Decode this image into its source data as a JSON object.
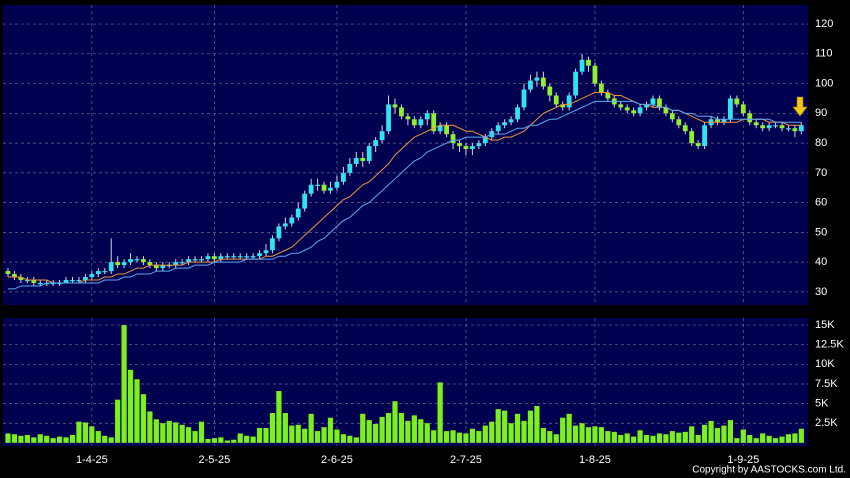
{
  "chart_data": [
    {
      "type": "candlestick",
      "open": [
        37,
        36,
        35,
        34,
        34,
        33,
        33,
        33,
        33,
        33,
        34,
        34,
        34,
        35,
        36,
        37,
        37,
        40,
        39,
        40,
        41,
        41,
        40,
        39,
        38,
        39,
        39,
        40,
        40,
        41,
        41,
        41,
        42,
        41,
        42,
        42,
        42,
        42,
        42,
        42,
        43,
        44,
        48,
        52,
        53,
        55,
        58,
        63,
        66,
        66,
        64,
        65,
        67,
        70,
        73,
        75,
        74,
        79,
        81,
        84,
        93,
        92,
        89,
        88,
        86,
        88,
        90,
        84,
        86,
        83,
        80,
        79,
        78,
        79,
        80,
        82,
        84,
        86,
        87,
        88,
        92,
        98,
        101,
        102,
        99,
        96,
        93,
        92,
        96,
        104,
        108,
        106,
        100,
        97,
        95,
        93,
        92,
        91,
        90,
        92,
        93,
        95,
        92,
        90,
        88,
        86,
        84,
        80,
        79,
        86,
        88,
        87,
        88,
        95,
        93,
        90,
        87,
        86,
        85,
        86,
        86,
        85,
        85,
        84
      ],
      "high": [
        38,
        37,
        36,
        35,
        35,
        34,
        34,
        34,
        34,
        35,
        35,
        35,
        36,
        37,
        38,
        38,
        48,
        42,
        41,
        43,
        42,
        42,
        41,
        40,
        40,
        40,
        41,
        41,
        42,
        42,
        42,
        43,
        43,
        43,
        43,
        43,
        43,
        43,
        43,
        44,
        46,
        49,
        53,
        55,
        56,
        60,
        64,
        68,
        68,
        67,
        67,
        69,
        72,
        75,
        77,
        77,
        80,
        82,
        86,
        96,
        95,
        93,
        90,
        89,
        89,
        91,
        91,
        87,
        87,
        84,
        81,
        80,
        80,
        81,
        83,
        85,
        87,
        88,
        89,
        93,
        100,
        103,
        104,
        104,
        100,
        97,
        94,
        97,
        105,
        110,
        109,
        107,
        101,
        98,
        96,
        94,
        93,
        92,
        93,
        94,
        96,
        96,
        93,
        91,
        89,
        87,
        85,
        81,
        87,
        89,
        89,
        89,
        96,
        96,
        94,
        91,
        88,
        87,
        87,
        87,
        87,
        86,
        86,
        87
      ],
      "low": [
        35,
        34,
        33,
        33,
        32,
        32,
        32,
        32,
        32,
        33,
        33,
        33,
        33,
        34,
        35,
        36,
        36,
        38,
        38,
        39,
        40,
        39,
        38,
        37,
        37,
        38,
        38,
        39,
        39,
        40,
        40,
        40,
        40,
        40,
        41,
        41,
        41,
        41,
        41,
        41,
        42,
        43,
        47,
        51,
        52,
        54,
        57,
        62,
        64,
        63,
        63,
        64,
        66,
        69,
        72,
        72,
        73,
        77,
        80,
        83,
        90,
        88,
        86,
        85,
        85,
        86,
        83,
        83,
        82,
        78,
        77,
        76,
        76,
        78,
        79,
        81,
        83,
        85,
        86,
        87,
        91,
        97,
        99,
        98,
        94,
        92,
        91,
        91,
        95,
        103,
        104,
        99,
        96,
        94,
        92,
        91,
        90,
        89,
        89,
        91,
        92,
        91,
        89,
        87,
        85,
        83,
        79,
        78,
        78,
        85,
        86,
        86,
        87,
        92,
        89,
        86,
        85,
        84,
        84,
        85,
        84,
        84,
        82,
        83
      ],
      "close": [
        36,
        35,
        34,
        34,
        33,
        33,
        33,
        33,
        33,
        34,
        34,
        34,
        35,
        36,
        37,
        37,
        40,
        39,
        40,
        41,
        41,
        40,
        39,
        38,
        39,
        39,
        40,
        40,
        41,
        41,
        41,
        42,
        41,
        42,
        42,
        42,
        42,
        42,
        42,
        43,
        44,
        48,
        52,
        53,
        55,
        58,
        63,
        66,
        66,
        64,
        65,
        67,
        70,
        73,
        75,
        74,
        79,
        81,
        84,
        93,
        92,
        89,
        88,
        86,
        88,
        90,
        84,
        86,
        83,
        80,
        79,
        78,
        79,
        80,
        82,
        84,
        86,
        87,
        88,
        92,
        98,
        101,
        102,
        99,
        96,
        93,
        92,
        96,
        104,
        108,
        106,
        100,
        97,
        95,
        93,
        92,
        91,
        90,
        92,
        93,
        95,
        92,
        90,
        88,
        86,
        84,
        80,
        79,
        86,
        88,
        87,
        88,
        95,
        93,
        90,
        87,
        86,
        85,
        86,
        86,
        85,
        85,
        84,
        86
      ],
      "up_color": "#2fe3f2",
      "down_color": "#8ef02f",
      "series": [
        {
          "color": "#f0953a",
          "values": [
            35,
            35,
            35,
            34,
            34,
            34,
            34,
            33,
            33,
            33,
            33,
            33,
            34,
            34,
            34,
            35,
            35,
            36,
            36,
            37,
            38,
            38,
            39,
            39,
            39,
            39,
            39,
            39,
            40,
            40,
            40,
            40,
            40,
            41,
            41,
            41,
            41,
            41,
            41,
            41,
            42,
            42,
            43,
            44,
            45,
            47,
            49,
            51,
            53,
            55,
            57,
            59,
            61,
            62,
            64,
            66,
            67,
            69,
            71,
            73,
            76,
            78,
            80,
            82,
            83,
            84,
            85,
            86,
            86,
            86,
            85,
            84,
            84,
            83,
            82,
            81,
            81,
            82,
            82,
            83,
            84,
            86,
            88,
            90,
            91,
            92,
            93,
            93,
            94,
            95,
            96,
            97,
            97,
            97,
            96,
            96,
            95,
            94,
            93,
            93,
            92,
            92,
            92,
            91,
            91,
            90,
            89,
            88,
            87,
            87,
            87,
            87,
            87,
            87,
            88,
            88,
            88,
            88,
            87,
            87,
            87,
            86,
            86,
            86
          ]
        },
        {
          "color": "#5aaaf5",
          "values": [
            31,
            31,
            32,
            32,
            32,
            32,
            33,
            33,
            33,
            33,
            33,
            33,
            33,
            33,
            33,
            34,
            34,
            34,
            35,
            35,
            36,
            36,
            36,
            37,
            37,
            37,
            38,
            38,
            38,
            39,
            39,
            39,
            40,
            40,
            40,
            40,
            40,
            41,
            41,
            41,
            41,
            41,
            42,
            42,
            43,
            43,
            44,
            45,
            47,
            48,
            50,
            52,
            54,
            55,
            57,
            59,
            60,
            62,
            64,
            66,
            68,
            70,
            72,
            74,
            75,
            77,
            78,
            79,
            80,
            81,
            81,
            82,
            82,
            82,
            82,
            83,
            83,
            83,
            84,
            85,
            85,
            86,
            86,
            87,
            88,
            88,
            89,
            90,
            91,
            92,
            93,
            94,
            94,
            94,
            94,
            94,
            94,
            94,
            93,
            93,
            93,
            92,
            92,
            91,
            91,
            90,
            90,
            89,
            89,
            89,
            88,
            88,
            88,
            88,
            88,
            88,
            88,
            88,
            88,
            87,
            87,
            87,
            87,
            87
          ]
        }
      ],
      "ylim": [
        25.6,
        126.4
      ],
      "yticks": [
        30,
        40,
        50,
        60,
        70,
        80,
        90,
        100,
        110,
        120
      ],
      "grid": true
    },
    {
      "type": "bar",
      "categories": [
        null,
        null,
        null,
        null,
        null,
        null,
        null,
        null,
        null,
        null,
        null,
        null,
        null,
        "1-4-25",
        null,
        null,
        null,
        null,
        null,
        null,
        null,
        null,
        null,
        null,
        null,
        null,
        null,
        null,
        null,
        null,
        null,
        null,
        "2-5-25",
        null,
        null,
        null,
        null,
        null,
        null,
        null,
        null,
        null,
        null,
        null,
        null,
        null,
        null,
        null,
        null,
        null,
        null,
        "2-6-25",
        null,
        null,
        null,
        null,
        null,
        null,
        null,
        null,
        null,
        null,
        null,
        null,
        null,
        null,
        null,
        null,
        null,
        null,
        null,
        "2-7-25",
        null,
        null,
        null,
        null,
        null,
        null,
        null,
        null,
        null,
        null,
        null,
        null,
        null,
        null,
        null,
        null,
        null,
        null,
        null,
        "1-8-25",
        null,
        null,
        null,
        null,
        null,
        null,
        null,
        null,
        null,
        null,
        null,
        null,
        null,
        null,
        null,
        null,
        null,
        null,
        null,
        null,
        null,
        null,
        "1-9-25",
        null,
        null,
        null,
        null,
        null,
        null,
        null,
        null,
        null
      ],
      "values": [
        1200,
        1100,
        900,
        1000,
        700,
        1100,
        900,
        600,
        800,
        700,
        1000,
        2700,
        2600,
        2100,
        1500,
        900,
        700,
        5500,
        15000,
        9300,
        8100,
        6200,
        4000,
        3000,
        2500,
        2800,
        2600,
        2300,
        2000,
        1500,
        2700,
        500,
        600,
        700,
        300,
        400,
        1200,
        900,
        800,
        1900,
        1900,
        3800,
        6600,
        3800,
        2200,
        2300,
        1800,
        3700,
        1500,
        2000,
        3200,
        1700,
        1100,
        900,
        700,
        3700,
        2900,
        2400,
        3300,
        3800,
        5300,
        3800,
        2800,
        3500,
        3000,
        2500,
        1600,
        7700,
        1500,
        1600,
        1300,
        1200,
        1800,
        1500,
        2200,
        2700,
        4300,
        4100,
        2500,
        3700,
        2800,
        4100,
        4700,
        1900,
        1500,
        1100,
        3200,
        3700,
        2200,
        2500,
        2000,
        2100,
        2000,
        1500,
        1400,
        1000,
        1200,
        800,
        1600,
        1000,
        900,
        1200,
        1100,
        1500,
        1300,
        1400,
        2100,
        1000,
        2300,
        2800,
        1900,
        2200,
        2900,
        600,
        1700,
        1000,
        600,
        1200,
        900,
        600,
        800,
        1100,
        1200,
        1800
      ],
      "color": "#7cf01c",
      "ylim": [
        -400,
        15900
      ],
      "yticks": [
        {
          "value": 2500,
          "label": "2.5K"
        },
        {
          "value": 5000,
          "label": "5K"
        },
        {
          "value": 7500,
          "label": "7.5K"
        },
        {
          "value": 10000,
          "label": "10K"
        },
        {
          "value": 12500,
          "label": "12.5K"
        },
        {
          "value": 15000,
          "label": "15K"
        }
      ],
      "grid": true
    }
  ],
  "copyright": "Copyright by AASTOCKS.com Ltd."
}
